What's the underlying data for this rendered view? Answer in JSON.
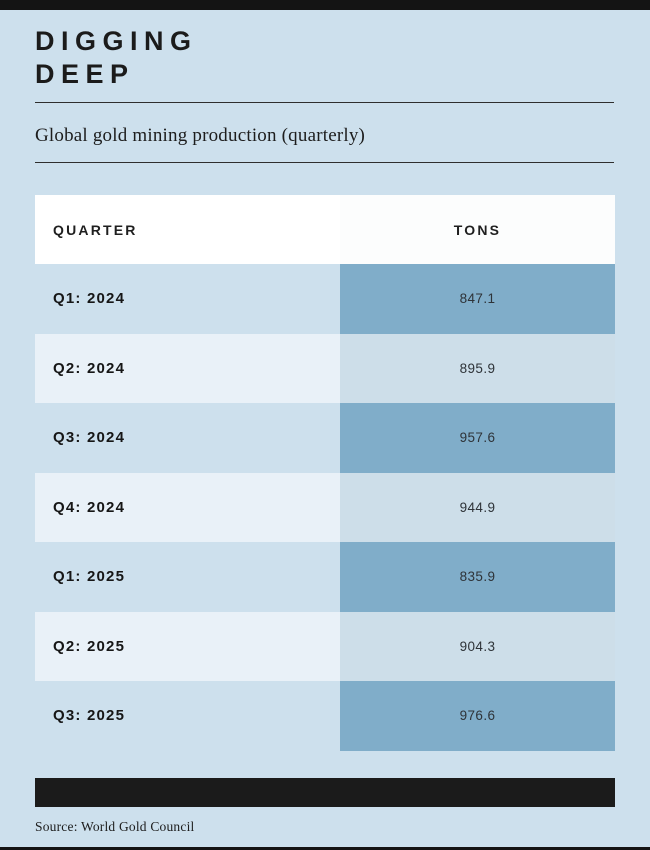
{
  "header": {
    "title_line1": "DIGGING",
    "title_line2": "DEEP",
    "subtitle": "Global gold mining production (quarterly)"
  },
  "chart_data": {
    "type": "table",
    "title": "DIGGING DEEP",
    "subtitle": "Global gold mining production (quarterly)",
    "columns": [
      "QUARTER",
      "TONS"
    ],
    "categories": [
      "Q1: 2024",
      "Q2: 2024",
      "Q3: 2024",
      "Q4: 2024",
      "Q1: 2025",
      "Q2: 2025",
      "Q3: 2025"
    ],
    "values": [
      847.1,
      895.9,
      957.6,
      944.9,
      835.9,
      904.3,
      976.6
    ],
    "rows": [
      {
        "quarter": "Q1: 2024",
        "tons": "847.1"
      },
      {
        "quarter": "Q2: 2024",
        "tons": "895.9"
      },
      {
        "quarter": "Q3: 2024",
        "tons": "957.6"
      },
      {
        "quarter": "Q4: 2024",
        "tons": "944.9"
      },
      {
        "quarter": "Q1: 2025",
        "tons": "835.9"
      },
      {
        "quarter": "Q2: 2025",
        "tons": "904.3"
      },
      {
        "quarter": "Q3: 2025",
        "tons": "976.6"
      }
    ],
    "unit": "tons",
    "source": "Source: World Gold Council"
  },
  "table_header": {
    "quarter": "QUARTER",
    "tons": "TONS"
  },
  "footer": {
    "source": "Source: World Gold Council"
  },
  "colors": {
    "page_background": "#cde0ed",
    "top_bottom_bar": "#141414",
    "divider_rule": "#2e2e2e",
    "header_cell_left": "#ffffff",
    "header_cell_right": "#fcfdfd",
    "row_odd_left": "#cde0ed",
    "row_odd_right": "#80adc9",
    "row_even_left": "#e9f1f8",
    "row_even_right": "#cddee9",
    "footer_black_bar": "#1b1b1b",
    "text_dark": "#1b1b1b"
  }
}
